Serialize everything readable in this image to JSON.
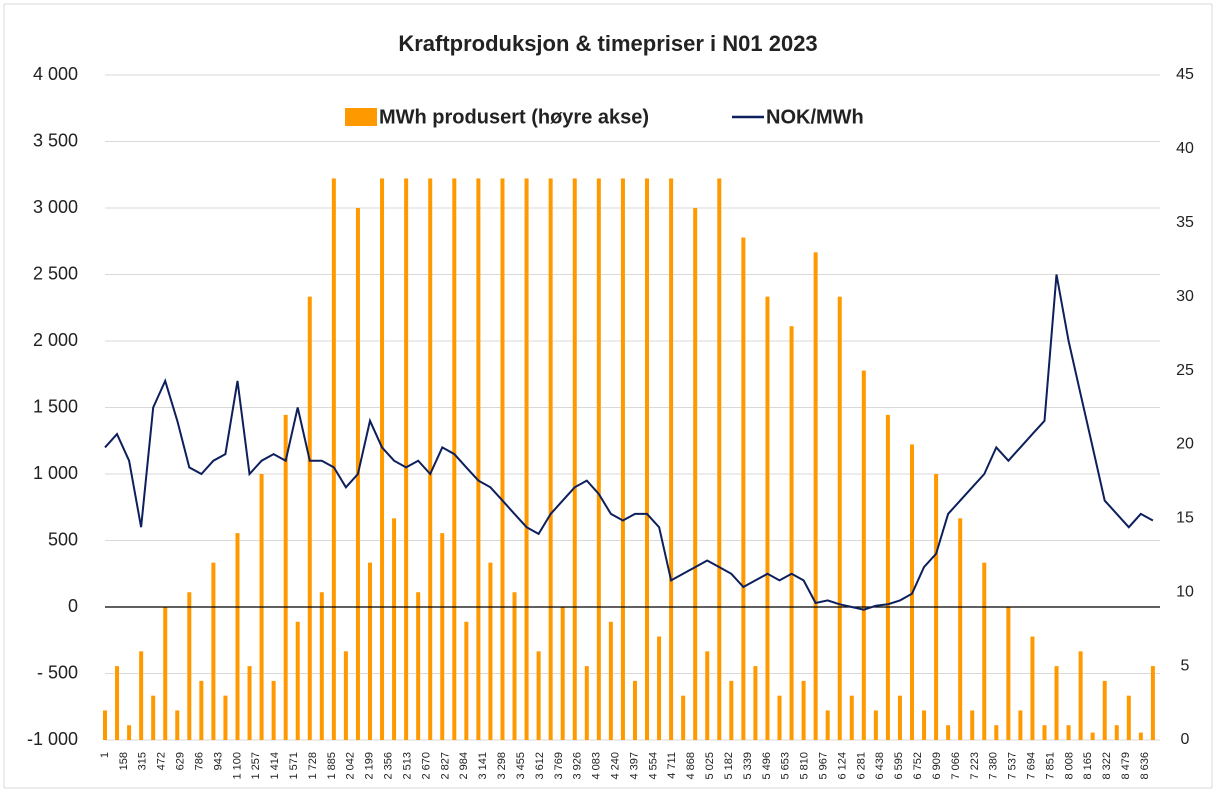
{
  "chart_data": {
    "type": "bar-line-dual",
    "title": "Kraftproduksjon & timepriser i N01 2023",
    "x": [
      1,
      101,
      201,
      301,
      401,
      501,
      601,
      701,
      801,
      901,
      1001,
      1101,
      1201,
      1301,
      1401,
      1501,
      1601,
      1701,
      1801,
      1901,
      2001,
      2101,
      2201,
      2301,
      2401,
      2501,
      2601,
      2701,
      2801,
      2901,
      3001,
      3101,
      3201,
      3301,
      3401,
      3501,
      3601,
      3701,
      3801,
      3901,
      4001,
      4101,
      4201,
      4301,
      4401,
      4501,
      4601,
      4701,
      4801,
      4901,
      5001,
      5101,
      5201,
      5301,
      5401,
      5501,
      5601,
      5701,
      5801,
      5901,
      6001,
      6101,
      6201,
      6301,
      6401,
      6501,
      6601,
      6701,
      6801,
      6901,
      7001,
      7101,
      7201,
      7301,
      7401,
      7501,
      7601,
      7701,
      7801,
      7901,
      8001,
      8101,
      8201,
      8301,
      8401,
      8501,
      8601,
      8701
    ],
    "series": [
      {
        "name": "MWh produsert (høyre akse)",
        "type": "bar",
        "axis": "y2",
        "color": "#ff9900",
        "values": [
          2,
          5,
          1,
          6,
          3,
          9,
          2,
          10,
          4,
          12,
          3,
          14,
          5,
          18,
          4,
          22,
          8,
          30,
          10,
          38,
          6,
          36,
          12,
          38,
          15,
          38,
          10,
          38,
          14,
          38,
          8,
          38,
          12,
          38,
          10,
          38,
          6,
          38,
          9,
          38,
          5,
          38,
          8,
          38,
          4,
          38,
          7,
          38,
          3,
          36,
          6,
          38,
          4,
          34,
          5,
          30,
          3,
          28,
          4,
          33,
          2,
          30,
          3,
          25,
          2,
          22,
          3,
          20,
          2,
          18,
          1,
          15,
          2,
          12,
          1,
          9,
          2,
          7,
          1,
          5,
          1,
          6,
          0.5,
          4,
          1,
          3,
          0.5,
          5
        ]
      },
      {
        "name": "NOK/MWh",
        "type": "line",
        "axis": "y",
        "color": "#0d1f5c",
        "values": [
          1200,
          1300,
          1100,
          600,
          1500,
          1700,
          1400,
          1050,
          1000,
          1100,
          1150,
          1700,
          1000,
          1100,
          1150,
          1100,
          1500,
          1100,
          1100,
          1050,
          900,
          1000,
          1400,
          1200,
          1100,
          1050,
          1100,
          1000,
          1200,
          1150,
          1050,
          950,
          900,
          800,
          700,
          600,
          550,
          700,
          800,
          900,
          950,
          850,
          700,
          650,
          700,
          700,
          600,
          200,
          250,
          300,
          350,
          300,
          250,
          150,
          200,
          250,
          200,
          250,
          200,
          30,
          50,
          20,
          0,
          -20,
          10,
          20,
          50,
          100,
          300,
          400,
          700,
          800,
          900,
          1000,
          1200,
          1100,
          1200,
          1300,
          1400,
          2500,
          2000,
          1600,
          1200,
          800,
          700,
          600,
          700,
          650
        ]
      }
    ],
    "xlim": [
      1,
      8760
    ],
    "xticks": [
      1,
      158,
      315,
      472,
      629,
      786,
      943,
      {
        "value": 1100,
        "label": "1 100"
      },
      {
        "value": 1257,
        "label": "1 257"
      },
      {
        "value": 1414,
        "label": "1 414"
      },
      {
        "value": 1571,
        "label": "1 571"
      },
      {
        "value": 1728,
        "label": "1 728"
      },
      {
        "value": 1885,
        "label": "1 885"
      },
      {
        "value": 2042,
        "label": "2 042"
      },
      {
        "value": 2199,
        "label": "2 199"
      },
      {
        "value": 2356,
        "label": "2 356"
      },
      {
        "value": 2513,
        "label": "2 513"
      },
      {
        "value": 2670,
        "label": "2 670"
      },
      {
        "value": 2827,
        "label": "2 827"
      },
      {
        "value": 2984,
        "label": "2 984"
      },
      {
        "value": 3141,
        "label": "3 141"
      },
      {
        "value": 3298,
        "label": "3 298"
      },
      {
        "value": 3455,
        "label": "3 455"
      },
      {
        "value": 3612,
        "label": "3 612"
      },
      {
        "value": 3769,
        "label": "3 769"
      },
      {
        "value": 3926,
        "label": "3 926"
      },
      {
        "value": 4083,
        "label": "4 083"
      },
      {
        "value": 4240,
        "label": "4 240"
      },
      {
        "value": 4397,
        "label": "4 397"
      },
      {
        "value": 4554,
        "label": "4 554"
      },
      {
        "value": 4711,
        "label": "4 711"
      },
      {
        "value": 4868,
        "label": "4 868"
      },
      {
        "value": 5025,
        "label": "5 025"
      },
      {
        "value": 5182,
        "label": "5 182"
      },
      {
        "value": 5339,
        "label": "5 339"
      },
      {
        "value": 5496,
        "label": "5 496"
      },
      {
        "value": 5653,
        "label": "5 653"
      },
      {
        "value": 5810,
        "label": "5 810"
      },
      {
        "value": 5967,
        "label": "5 967"
      },
      {
        "value": 6124,
        "label": "6 124"
      },
      {
        "value": 6281,
        "label": "6 281"
      },
      {
        "value": 6438,
        "label": "6 438"
      },
      {
        "value": 6595,
        "label": "6 595"
      },
      {
        "value": 6752,
        "label": "6 752"
      },
      {
        "value": 6909,
        "label": "6 909"
      },
      {
        "value": 7066,
        "label": "7 066"
      },
      {
        "value": 7223,
        "label": "7 223"
      },
      {
        "value": 7380,
        "label": "7 380"
      },
      {
        "value": 7537,
        "label": "7 537"
      },
      {
        "value": 7694,
        "label": "7 694"
      },
      {
        "value": 7851,
        "label": "7 851"
      },
      {
        "value": 8008,
        "label": "8 008"
      },
      {
        "value": 8165,
        "label": "8 165"
      },
      {
        "value": 8322,
        "label": "8 322"
      },
      {
        "value": 8479,
        "label": "8 479"
      },
      {
        "value": 8636,
        "label": "8 636"
      }
    ],
    "ylim": [
      -1000,
      4000
    ],
    "yticks": [
      {
        "value": -1000,
        "label": "-1 000"
      },
      {
        "value": -500,
        "label": "- 500"
      },
      0,
      500,
      {
        "value": 1000,
        "label": "1 000"
      },
      {
        "value": 1500,
        "label": "1 500"
      },
      {
        "value": 2000,
        "label": "2 000"
      },
      {
        "value": 2500,
        "label": "2 500"
      },
      {
        "value": 3000,
        "label": "3 000"
      },
      {
        "value": 3500,
        "label": "3 500"
      },
      {
        "value": 4000,
        "label": "4 000"
      }
    ],
    "y2lim": [
      0,
      45
    ],
    "y2ticks": [
      0,
      5,
      10,
      15,
      20,
      25,
      30,
      35,
      40,
      45
    ],
    "grid": true,
    "negative_tick_color": "#c00000",
    "legend": "top"
  }
}
